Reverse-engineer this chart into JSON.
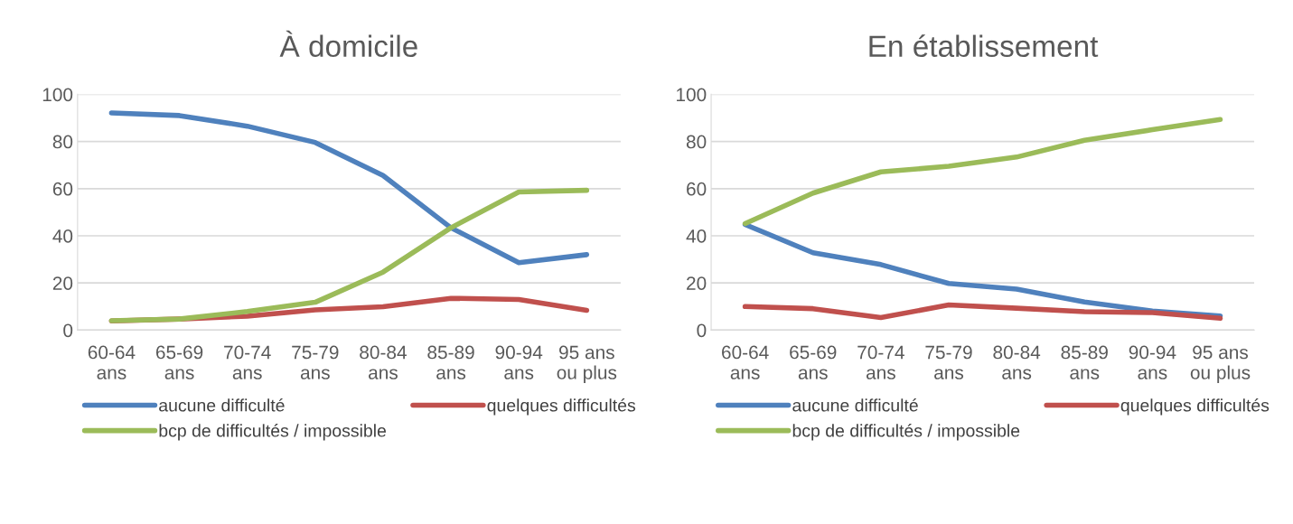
{
  "chart_data": [
    {
      "type": "line",
      "title": "À domicile",
      "categories": [
        "60-64\nans",
        "65-69\nans",
        "70-74\nans",
        "75-79\nans",
        "80-84\nans",
        "85-89\nans",
        "90-94\nans",
        "95 ans\nou plus"
      ],
      "series": [
        {
          "name": "aucune difficulté",
          "color": "#4f81bd",
          "values": [
            92.1,
            91.0,
            86.5,
            79.6,
            65.6,
            43.4,
            28.6,
            32.0
          ]
        },
        {
          "name": "quelques difficultés",
          "color": "#c0504d",
          "values": [
            3.9,
            4.7,
            5.9,
            8.6,
            9.9,
            13.5,
            13.0,
            8.4
          ]
        },
        {
          "name": "bcp de difficultés / impossible",
          "color": "#9bbb59",
          "values": [
            4.0,
            4.7,
            7.9,
            11.8,
            24.6,
            43.4,
            58.6,
            59.3
          ]
        }
      ],
      "ylim": [
        0,
        100
      ],
      "yticks": [
        0,
        20,
        40,
        60,
        80,
        100
      ],
      "grid": "y",
      "legend": "bottom",
      "marker": "none",
      "line_style": "solid"
    },
    {
      "type": "line",
      "title": "En établissement",
      "categories": [
        "60-64\nans",
        "65-69\nans",
        "70-74\nans",
        "75-79\nans",
        "80-84\nans",
        "85-89\nans",
        "90-94\nans",
        "95 ans\nou plus"
      ],
      "series": [
        {
          "name": "aucune difficulté",
          "color": "#4f81bd",
          "values": [
            44.8,
            32.8,
            27.8,
            19.8,
            17.4,
            11.9,
            8.1,
            6.0
          ]
        },
        {
          "name": "quelques difficultés",
          "color": "#c0504d",
          "values": [
            10.0,
            9.1,
            5.3,
            10.7,
            9.3,
            7.8,
            7.4,
            5.0
          ]
        },
        {
          "name": "bcp de difficultés / impossible",
          "color": "#9bbb59",
          "values": [
            45.2,
            58.1,
            67.1,
            69.5,
            73.4,
            80.5,
            85.0,
            89.3
          ]
        }
      ],
      "ylim": [
        0,
        100
      ],
      "yticks": [
        0,
        20,
        40,
        60,
        80,
        100
      ],
      "grid": "y",
      "legend": "bottom",
      "marker": "none",
      "line_style": "solid"
    }
  ]
}
